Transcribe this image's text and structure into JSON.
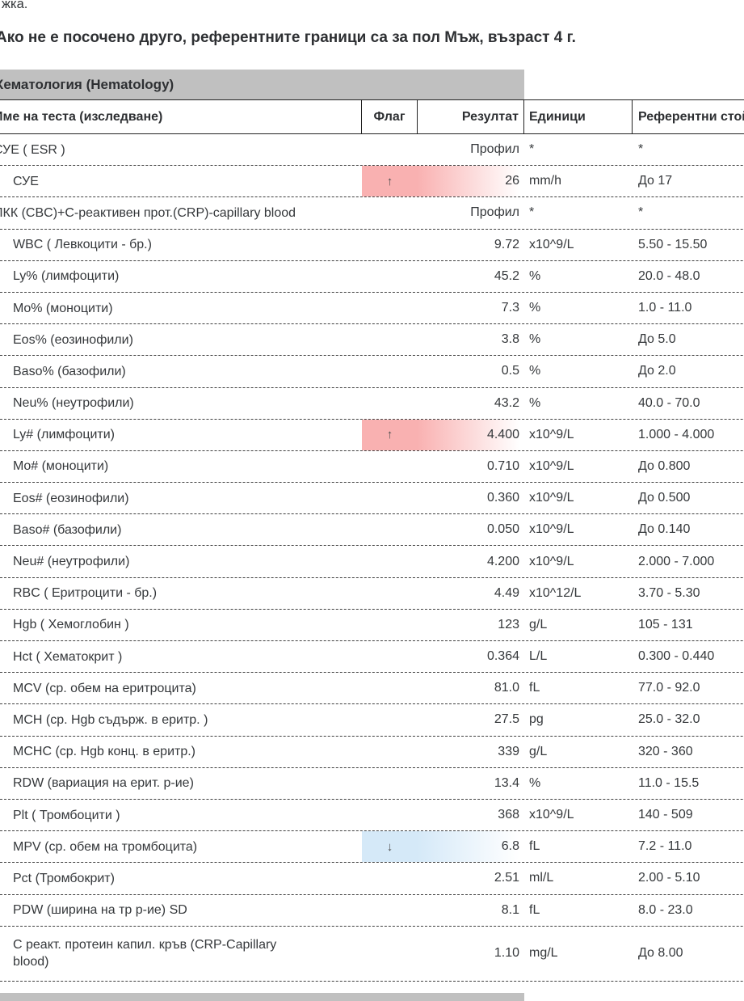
{
  "page": {
    "top_note_fragment": "жка.",
    "reference_note": "Ако не е посочено друго, референтните граници са за пол Мъж, възраст 4 г."
  },
  "section": {
    "title": "Хематология (Hematology)"
  },
  "icons": {
    "high_arrow": "↑",
    "low_arrow": "↓"
  },
  "colors": {
    "high_flag_highlight": "#f9b1b1",
    "low_flag_highlight": "#d5e9f8",
    "section_bar": "#c0c0c0"
  },
  "table": {
    "columns": {
      "name": "Име на теста (изследване)",
      "flag": "Флаг",
      "result": "Резултат",
      "units": "Единици",
      "reference": "Референтни стойности"
    },
    "rows": [
      {
        "name": "СУЕ ( ESR )",
        "indent": false,
        "flag": null,
        "result": "Профил",
        "units": "*",
        "reference": "*"
      },
      {
        "name": "СУЕ",
        "indent": true,
        "flag": "high",
        "result": "26",
        "units": "mm/h",
        "reference": "До 17"
      },
      {
        "name": "ПКК (CBC)+С-реактивен прот.(CRP)-capillary blood",
        "indent": false,
        "flag": null,
        "result": "Профил",
        "units": "*",
        "reference": "*"
      },
      {
        "name": "WBC ( Левкоцити - бр.)",
        "indent": true,
        "flag": null,
        "result": "9.72",
        "units": "x10^9/L",
        "reference": "5.50 - 15.50"
      },
      {
        "name": "Ly% (лимфоцити)",
        "indent": true,
        "flag": null,
        "result": "45.2",
        "units": "%",
        "reference": "20.0 - 48.0"
      },
      {
        "name": "Mo% (моноцити)",
        "indent": true,
        "flag": null,
        "result": "7.3",
        "units": "%",
        "reference": "1.0 - 11.0"
      },
      {
        "name": "Eos% (еозинофили)",
        "indent": true,
        "flag": null,
        "result": "3.8",
        "units": "%",
        "reference": "До 5.0"
      },
      {
        "name": "Baso% (базофили)",
        "indent": true,
        "flag": null,
        "result": "0.5",
        "units": "%",
        "reference": "До 2.0"
      },
      {
        "name": "Neu% (неутрофили)",
        "indent": true,
        "flag": null,
        "result": "43.2",
        "units": "%",
        "reference": "40.0 - 70.0"
      },
      {
        "name": "Ly# (лимфоцити)",
        "indent": true,
        "flag": "high",
        "result": "4.400",
        "units": "x10^9/L",
        "reference": "1.000 - 4.000"
      },
      {
        "name": "Mo# (моноцити)",
        "indent": true,
        "flag": null,
        "result": "0.710",
        "units": "x10^9/L",
        "reference": "До 0.800"
      },
      {
        "name": "Eos# (еозинофили)",
        "indent": true,
        "flag": null,
        "result": "0.360",
        "units": "x10^9/L",
        "reference": "До 0.500"
      },
      {
        "name": "Baso# (базофили)",
        "indent": true,
        "flag": null,
        "result": "0.050",
        "units": "x10^9/L",
        "reference": "До 0.140"
      },
      {
        "name": "Neu# (неутрофили)",
        "indent": true,
        "flag": null,
        "result": "4.200",
        "units": "x10^9/L",
        "reference": "2.000 - 7.000"
      },
      {
        "name": "RBC ( Еритроцити - бр.)",
        "indent": true,
        "flag": null,
        "result": "4.49",
        "units": "x10^12/L",
        "reference": "3.70 - 5.30"
      },
      {
        "name": "Hgb ( Хемоглобин )",
        "indent": true,
        "flag": null,
        "result": "123",
        "units": "g/L",
        "reference": "105 - 131"
      },
      {
        "name": "Hct ( Хематокрит )",
        "indent": true,
        "flag": null,
        "result": "0.364",
        "units": "L/L",
        "reference": "0.300 - 0.440"
      },
      {
        "name": "MCV (ср. обем на еритроцита)",
        "indent": true,
        "flag": null,
        "result": "81.0",
        "units": "fL",
        "reference": "77.0 - 92.0"
      },
      {
        "name": "MCH (ср. Hgb съдърж. в еритр. )",
        "indent": true,
        "flag": null,
        "result": "27.5",
        "units": "pg",
        "reference": "25.0 - 32.0"
      },
      {
        "name": "MCHC (ср. Hgb конц. в еритр.)",
        "indent": true,
        "flag": null,
        "result": "339",
        "units": "g/L",
        "reference": "320 - 360"
      },
      {
        "name": "RDW (вариация на ерит. р-ие)",
        "indent": true,
        "flag": null,
        "result": "13.4",
        "units": "%",
        "reference": "11.0 - 15.5"
      },
      {
        "name": "Plt ( Тромбоцити )",
        "indent": true,
        "flag": null,
        "result": "368",
        "units": "x10^9/L",
        "reference": "140 - 509"
      },
      {
        "name": "MPV (ср. обем на тромбоцита)",
        "indent": true,
        "flag": "low",
        "result": "6.8",
        "units": "fL",
        "reference": "7.2 - 11.0"
      },
      {
        "name": "Pct (Тромбокрит)",
        "indent": true,
        "flag": null,
        "result": "2.51",
        "units": "ml/L",
        "reference": "2.00 - 5.10"
      },
      {
        "name": "PDW (ширина на тр р-ие) SD",
        "indent": true,
        "flag": null,
        "result": "8.1",
        "units": "fL",
        "reference": "8.0 - 23.0"
      },
      {
        "name": "С реакт. протеин капил. кръв (CRP-Capillary\nblood)",
        "indent": true,
        "flag": null,
        "result": "1.10",
        "units": "mg/L",
        "reference": "До 8.00",
        "tall": true
      }
    ]
  }
}
